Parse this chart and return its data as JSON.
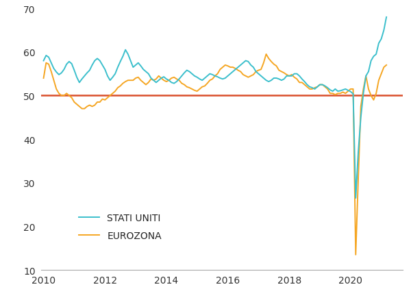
{
  "title": "",
  "xlabel": "",
  "ylabel": "",
  "ylim": [
    10,
    70
  ],
  "yticks": [
    10,
    20,
    30,
    40,
    50,
    60,
    70
  ],
  "xlim": [
    2009.92,
    2021.7
  ],
  "xticks": [
    2010,
    2012,
    2014,
    2016,
    2018,
    2020
  ],
  "hline_y": 50.0,
  "hline_color": "#D94F2B",
  "us_color": "#3BBFCC",
  "eu_color": "#F5A623",
  "legend_us": "STATI UNITI",
  "legend_eu": "EUROZONA",
  "us_data": [
    58.0,
    59.2,
    58.8,
    57.5,
    56.2,
    55.4,
    54.8,
    55.2,
    56.0,
    57.2,
    57.8,
    57.3,
    55.8,
    54.2,
    53.0,
    53.8,
    54.5,
    55.2,
    55.8,
    57.0,
    58.0,
    58.5,
    58.0,
    57.0,
    56.0,
    54.5,
    53.5,
    54.2,
    55.0,
    56.5,
    57.8,
    59.0,
    60.5,
    59.5,
    58.0,
    56.5,
    57.0,
    57.5,
    56.8,
    56.0,
    55.5,
    55.0,
    54.0,
    53.5,
    53.0,
    53.5,
    54.0,
    54.3,
    53.8,
    53.5,
    53.0,
    52.8,
    53.2,
    53.8,
    54.5,
    55.2,
    55.8,
    55.5,
    55.0,
    54.5,
    54.2,
    53.8,
    53.5,
    54.0,
    54.5,
    55.0,
    54.8,
    54.5,
    54.3,
    54.0,
    53.8,
    54.0,
    54.5,
    55.0,
    55.5,
    56.0,
    56.5,
    57.0,
    57.5,
    58.0,
    57.8,
    57.0,
    56.5,
    55.5,
    55.0,
    54.5,
    54.0,
    53.5,
    53.2,
    53.5,
    54.0,
    54.0,
    53.8,
    53.5,
    53.8,
    54.5,
    54.5,
    54.5,
    55.0,
    55.0,
    54.5,
    53.8,
    53.2,
    52.5,
    52.0,
    51.8,
    51.5,
    52.0,
    52.5,
    52.5,
    52.2,
    51.8,
    51.3,
    51.0,
    51.5,
    51.0,
    51.1,
    51.3,
    51.5,
    51.2,
    50.9,
    50.4,
    26.5,
    37.0,
    45.0,
    50.5,
    54.5,
    55.5,
    58.0,
    59.0,
    59.5,
    62.0,
    63.0,
    65.0,
    68.0
  ],
  "eu_data": [
    54.0,
    57.5,
    57.2,
    55.5,
    53.5,
    51.5,
    50.5,
    50.0,
    50.0,
    50.5,
    50.0,
    49.5,
    48.5,
    48.0,
    47.5,
    47.0,
    47.0,
    47.5,
    47.8,
    47.5,
    47.8,
    48.5,
    48.5,
    49.2,
    49.0,
    49.5,
    50.0,
    50.5,
    51.0,
    51.8,
    52.2,
    52.8,
    53.2,
    53.5,
    53.5,
    53.5,
    54.0,
    54.2,
    53.5,
    53.0,
    52.5,
    53.0,
    53.8,
    53.5,
    53.8,
    54.5,
    54.0,
    53.5,
    53.2,
    53.5,
    54.0,
    54.2,
    53.8,
    53.5,
    52.8,
    52.5,
    52.0,
    51.8,
    51.5,
    51.2,
    51.0,
    51.5,
    52.0,
    52.2,
    52.8,
    53.5,
    53.8,
    54.5,
    55.0,
    56.0,
    56.5,
    57.0,
    56.8,
    56.5,
    56.5,
    56.2,
    55.8,
    55.5,
    54.8,
    54.5,
    54.2,
    54.5,
    54.8,
    55.5,
    55.8,
    56.0,
    57.5,
    59.5,
    58.5,
    57.8,
    57.2,
    56.8,
    55.8,
    55.5,
    55.2,
    54.8,
    54.5,
    54.8,
    54.2,
    53.8,
    53.0,
    53.0,
    52.5,
    52.0,
    51.5,
    51.5,
    51.8,
    52.0,
    52.5,
    52.5,
    52.0,
    51.5,
    50.5,
    50.5,
    50.2,
    50.5,
    50.5,
    50.8,
    50.5,
    51.0,
    51.5,
    51.5,
    13.5,
    31.0,
    47.5,
    51.5,
    54.5,
    51.5,
    50.0,
    49.0,
    50.5,
    53.5,
    55.0,
    56.5,
    57.0
  ],
  "background_color": "#ffffff",
  "linewidth": 1.4,
  "figsize": [
    6.0,
    4.39
  ],
  "dpi": 100
}
